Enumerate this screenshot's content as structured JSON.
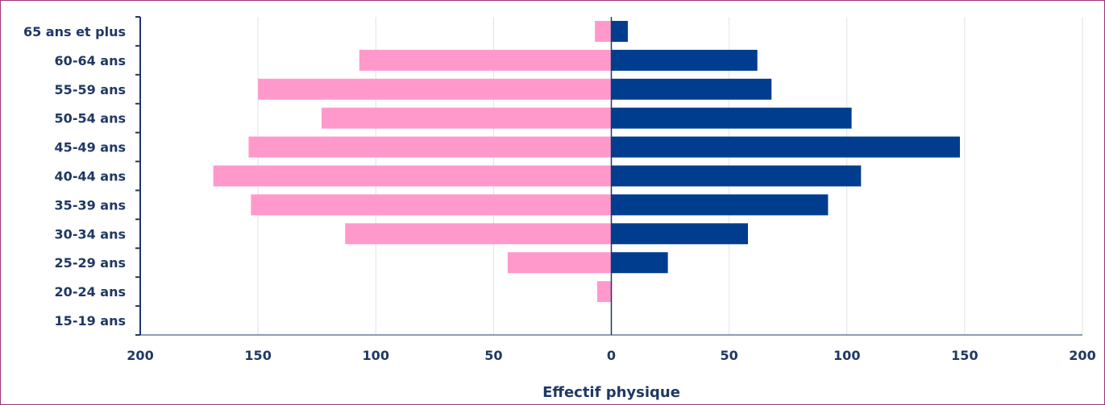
{
  "chart_data": {
    "type": "bar",
    "orientation": "horizontal-diverging",
    "title": "",
    "xlabel": "Effectif physique",
    "ylabel": "",
    "categories": [
      "65 ans et plus",
      "60-64 ans",
      "55-59 ans",
      "50-54 ans",
      "45-49 ans",
      "40-44 ans",
      "35-39 ans",
      "30-34 ans",
      "25-29 ans",
      "20-24 ans",
      "15-19 ans"
    ],
    "series": [
      {
        "color": "#ff99cc",
        "side": "left",
        "values": [
          7,
          107,
          150,
          123,
          154,
          169,
          153,
          113,
          44,
          6,
          0
        ]
      },
      {
        "color": "#003d8f",
        "side": "right",
        "values": [
          7,
          62,
          68,
          102,
          148,
          106,
          92,
          58,
          24,
          0,
          0
        ]
      }
    ],
    "xlim": [
      -200,
      200
    ],
    "x_ticks": [
      "200",
      "150",
      "100",
      "50",
      "0",
      "50",
      "100",
      "150",
      "200"
    ],
    "grid": true,
    "legend": "none"
  }
}
